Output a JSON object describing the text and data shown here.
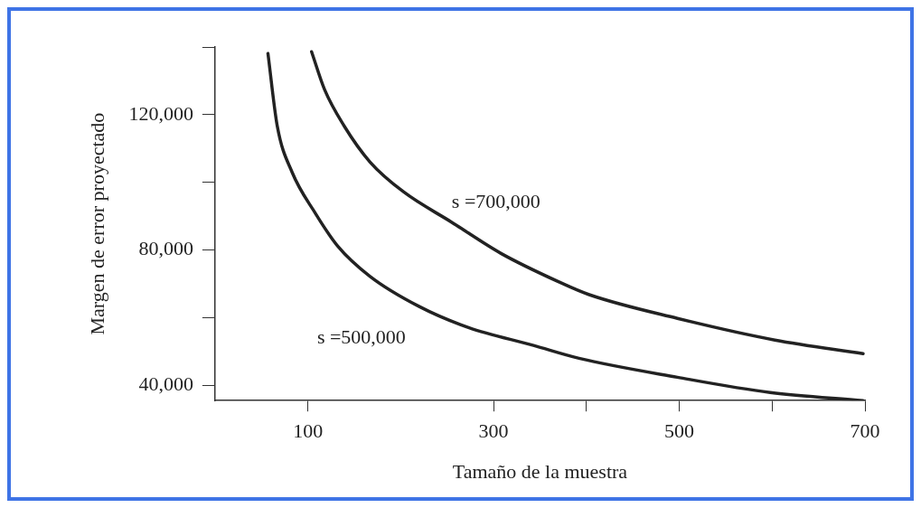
{
  "chart_data": {
    "type": "line",
    "xlabel": "Tamaño de la muestra",
    "ylabel": "Margen de error proyectado",
    "xlim": [
      0,
      700
    ],
    "xticks": [
      100,
      300,
      {
        "value": 400,
        "label": null
      },
      500,
      {
        "value": 600,
        "label": null
      },
      700
    ],
    "ylim": [
      35500,
      140000
    ],
    "yticks": [
      {
        "value": 40000,
        "label": "40,000"
      },
      {
        "value": 60000,
        "label": null
      },
      {
        "value": 80000,
        "label": "80,000"
      },
      {
        "value": 100000,
        "label": null
      },
      {
        "value": 120000,
        "label": "120,000"
      },
      {
        "value": 140000,
        "label": null
      }
    ],
    "grid": false,
    "legend": false,
    "marker": "none",
    "line_style": "solid",
    "series": [
      {
        "name": "s =500,000",
        "color": "#222222",
        "x": [
          57,
          67,
          83,
          108,
          132,
          167,
          220,
          273,
          343,
          392,
          498,
          598,
          698
        ],
        "values": [
          138100,
          116700,
          103000,
          90900,
          81200,
          72200,
          63300,
          57100,
          51800,
          48000,
          42400,
          37900,
          35500
        ]
      },
      {
        "name": "s =700,000",
        "color": "#222222",
        "x": [
          104,
          118,
          139,
          167,
          203,
          255,
          308,
          371,
          403,
          498,
          603,
          698
        ],
        "values": [
          138600,
          127400,
          116700,
          106000,
          97200,
          88200,
          79000,
          70500,
          66800,
          59800,
          53400,
          49400
        ]
      }
    ]
  }
}
